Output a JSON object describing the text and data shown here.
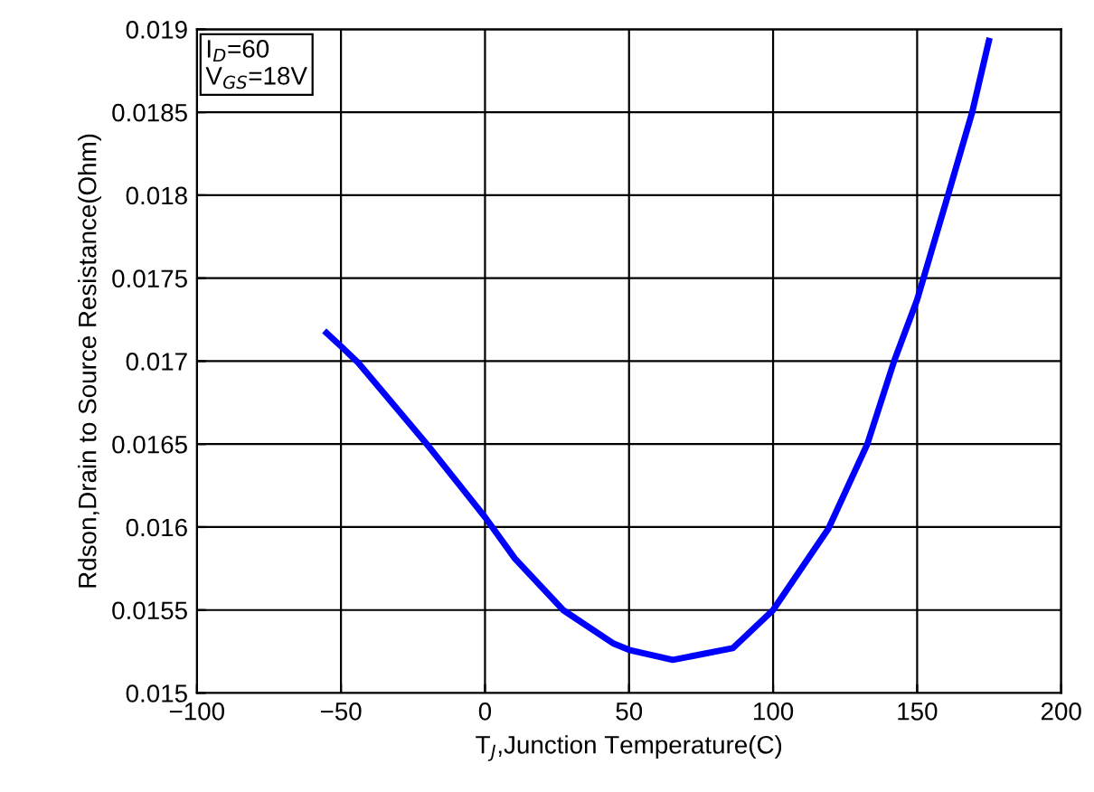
{
  "chart_data": {
    "type": "line",
    "xlabel": "T$_{J}$,Junction Temperature(C)",
    "ylabel": "Rdson,Drain to Source Resistance(Ohm)",
    "annotations": [
      "I$_{D}$=60\nV$_{GS}$=18V"
    ],
    "x": [
      -55,
      -50,
      -44,
      -20.2,
      0,
      10.4,
      27.1,
      44.4,
      50,
      65.2,
      86,
      100,
      119.2,
      132.7,
      142,
      150,
      160.7,
      169.1,
      174.9
    ],
    "series": [
      {
        "color": "#0000ff",
        "values": [
          0.01717,
          0.01709,
          0.01699,
          0.0165,
          0.01606,
          0.01581,
          0.0155,
          0.0153,
          0.01526,
          0.0152,
          0.01527,
          0.0155,
          0.01599,
          0.0165,
          0.017,
          0.01737,
          0.018,
          0.0185,
          0.01893
        ]
      }
    ],
    "xlim": [
      -100,
      200
    ],
    "xticks": [
      {
        "value": -100,
        "label": "−100"
      },
      {
        "value": -50,
        "label": "−50"
      },
      0,
      50,
      100,
      150,
      200
    ],
    "ylim": [
      0.015,
      0.019
    ],
    "yticks": [
      0.015,
      0.0155,
      0.016,
      0.0165,
      0.017,
      0.0175,
      0.018,
      0.0185,
      0.019
    ],
    "grid": true,
    "line_style": "solid",
    "marker": "none"
  }
}
